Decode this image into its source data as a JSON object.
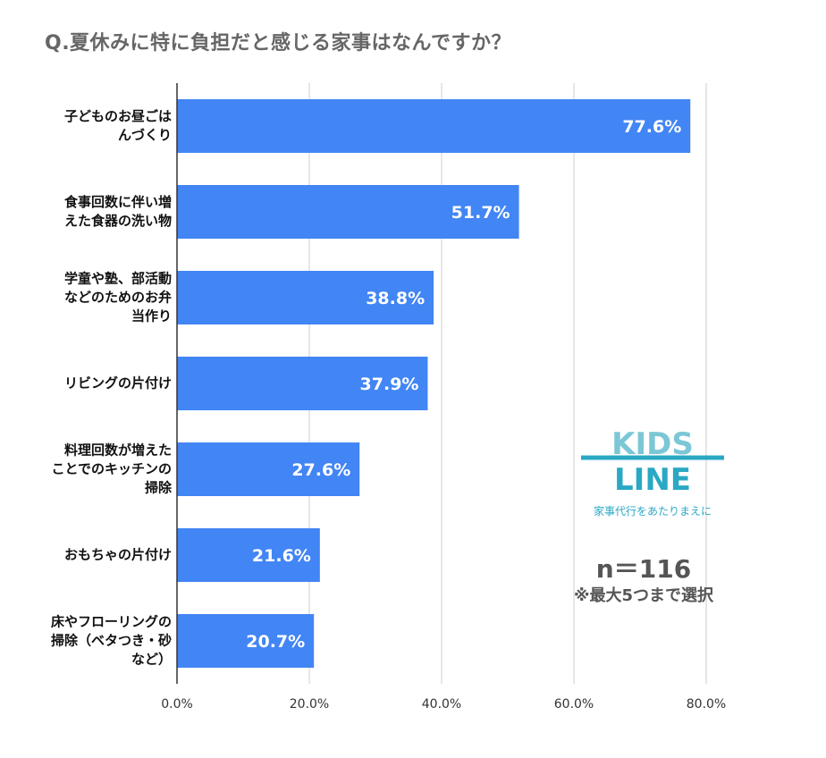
{
  "chart_data": {
    "type": "bar",
    "orientation": "horizontal",
    "title": "Q.夏休みに特に負担だと感じる家事はなんですか？",
    "categories": [
      "子どものお昼ごは\nんづくり",
      "食事回数に伴い増\nえた食器の洗い物",
      "学童や塾、部活動\nなどのためのお弁\n当作り",
      "リビングの片付け",
      "料理回数が増えた\nことでのキッチンの\n掃除",
      "おもちゃの片付け",
      "床やフローリングの\n掃除（ベタつき・砂\nなど）"
    ],
    "values": [
      77.6,
      51.7,
      38.8,
      37.9,
      27.6,
      21.6,
      20.7
    ],
    "data_labels": [
      "77.6%",
      "51.7%",
      "38.8%",
      "37.9%",
      "27.6%",
      "21.6%",
      "20.7%"
    ],
    "xlim": [
      0,
      80
    ],
    "x_ticks": [
      "0.0%",
      "20.0%",
      "40.0%",
      "60.0%",
      "80.0%"
    ],
    "grid": true,
    "bar_color": "#4285f4"
  },
  "logo": {
    "text": "KIDS LINE",
    "tagline": "家事代行をあたりまえに",
    "color": "#2aa8c4"
  },
  "sample": "n＝116",
  "note": "※最大5つまで選択"
}
